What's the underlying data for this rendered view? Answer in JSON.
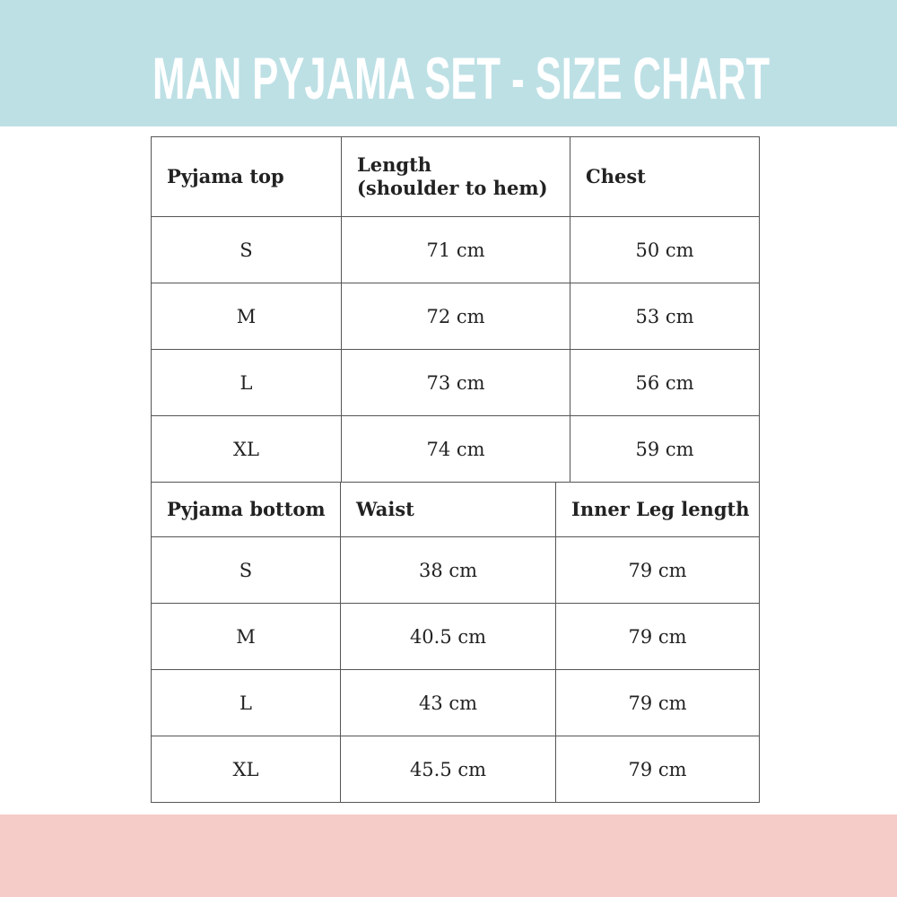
{
  "title": "MAN PYJAMA SET - SIZE CHART",
  "colors": {
    "top_band": "#bde0e5",
    "bottom_band": "#f6ccc8",
    "title_text": "#ffffff"
  },
  "top_table": {
    "headers": [
      "Pyjama top",
      "Length\n(shoulder to hem)",
      "Chest"
    ],
    "rows": [
      [
        "S",
        "71 cm",
        "50 cm"
      ],
      [
        "M",
        "72 cm",
        "53 cm"
      ],
      [
        "L",
        "73 cm",
        "56 cm"
      ],
      [
        "XL",
        "74 cm",
        "59 cm"
      ]
    ]
  },
  "bottom_table": {
    "headers": [
      "Pyjama bottom",
      "Waist",
      "Inner Leg length"
    ],
    "rows": [
      [
        "S",
        "38 cm",
        "79 cm"
      ],
      [
        "M",
        "40.5 cm",
        "79 cm"
      ],
      [
        "L",
        "43 cm",
        "79 cm"
      ],
      [
        "XL",
        "45.5 cm",
        "79 cm"
      ]
    ]
  }
}
